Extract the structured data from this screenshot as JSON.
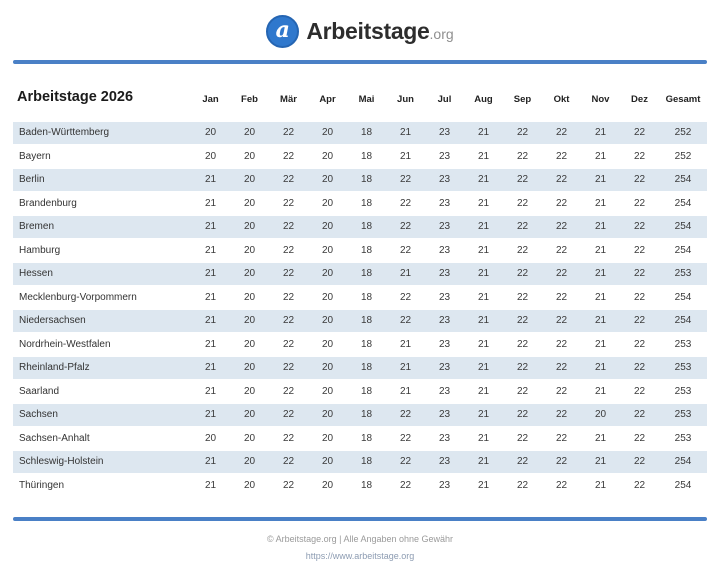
{
  "logo": {
    "brand": "Arbeitstage",
    "tld": ".org",
    "icon": "a-circle-icon",
    "icon_glyph": "a"
  },
  "colors": {
    "accent_bar": "#4a80c6",
    "row_stripe": "#dde7f0",
    "logo_circle": "#2f78cd"
  },
  "table": {
    "title": "Arbeitstage 2026",
    "columns": [
      "Jan",
      "Feb",
      "Mär",
      "Apr",
      "Mai",
      "Jun",
      "Jul",
      "Aug",
      "Sep",
      "Okt",
      "Nov",
      "Dez",
      "Gesamt"
    ],
    "rows": [
      {
        "state": "Baden-Württemberg",
        "months": [
          20,
          20,
          22,
          20,
          18,
          21,
          23,
          21,
          22,
          22,
          21,
          22
        ],
        "total": 252
      },
      {
        "state": "Bayern",
        "months": [
          20,
          20,
          22,
          20,
          18,
          21,
          23,
          21,
          22,
          22,
          21,
          22
        ],
        "total": 252
      },
      {
        "state": "Berlin",
        "months": [
          21,
          20,
          22,
          20,
          18,
          22,
          23,
          21,
          22,
          22,
          21,
          22
        ],
        "total": 254
      },
      {
        "state": "Brandenburg",
        "months": [
          21,
          20,
          22,
          20,
          18,
          22,
          23,
          21,
          22,
          22,
          21,
          22
        ],
        "total": 254
      },
      {
        "state": "Bremen",
        "months": [
          21,
          20,
          22,
          20,
          18,
          22,
          23,
          21,
          22,
          22,
          21,
          22
        ],
        "total": 254
      },
      {
        "state": "Hamburg",
        "months": [
          21,
          20,
          22,
          20,
          18,
          22,
          23,
          21,
          22,
          22,
          21,
          22
        ],
        "total": 254
      },
      {
        "state": "Hessen",
        "months": [
          21,
          20,
          22,
          20,
          18,
          21,
          23,
          21,
          22,
          22,
          21,
          22
        ],
        "total": 253
      },
      {
        "state": "Mecklenburg-Vorpommern",
        "months": [
          21,
          20,
          22,
          20,
          18,
          22,
          23,
          21,
          22,
          22,
          21,
          22
        ],
        "total": 254
      },
      {
        "state": "Niedersachsen",
        "months": [
          21,
          20,
          22,
          20,
          18,
          22,
          23,
          21,
          22,
          22,
          21,
          22
        ],
        "total": 254
      },
      {
        "state": "Nordrhein-Westfalen",
        "months": [
          21,
          20,
          22,
          20,
          18,
          21,
          23,
          21,
          22,
          22,
          21,
          22
        ],
        "total": 253
      },
      {
        "state": "Rheinland-Pfalz",
        "months": [
          21,
          20,
          22,
          20,
          18,
          21,
          23,
          21,
          22,
          22,
          21,
          22
        ],
        "total": 253
      },
      {
        "state": "Saarland",
        "months": [
          21,
          20,
          22,
          20,
          18,
          21,
          23,
          21,
          22,
          22,
          21,
          22
        ],
        "total": 253
      },
      {
        "state": "Sachsen",
        "months": [
          21,
          20,
          22,
          20,
          18,
          22,
          23,
          21,
          22,
          22,
          20,
          22
        ],
        "total": 253
      },
      {
        "state": "Sachsen-Anhalt",
        "months": [
          20,
          20,
          22,
          20,
          18,
          22,
          23,
          21,
          22,
          22,
          21,
          22
        ],
        "total": 253
      },
      {
        "state": "Schleswig-Holstein",
        "months": [
          21,
          20,
          22,
          20,
          18,
          22,
          23,
          21,
          22,
          22,
          21,
          22
        ],
        "total": 254
      },
      {
        "state": "Thüringen",
        "months": [
          21,
          20,
          22,
          20,
          18,
          22,
          23,
          21,
          22,
          22,
          21,
          22
        ],
        "total": 254
      }
    ]
  },
  "footer": {
    "copyright": "© Arbeitstage.org | Alle Angaben ohne Gewähr",
    "url": "https://www.arbeitstage.org"
  }
}
